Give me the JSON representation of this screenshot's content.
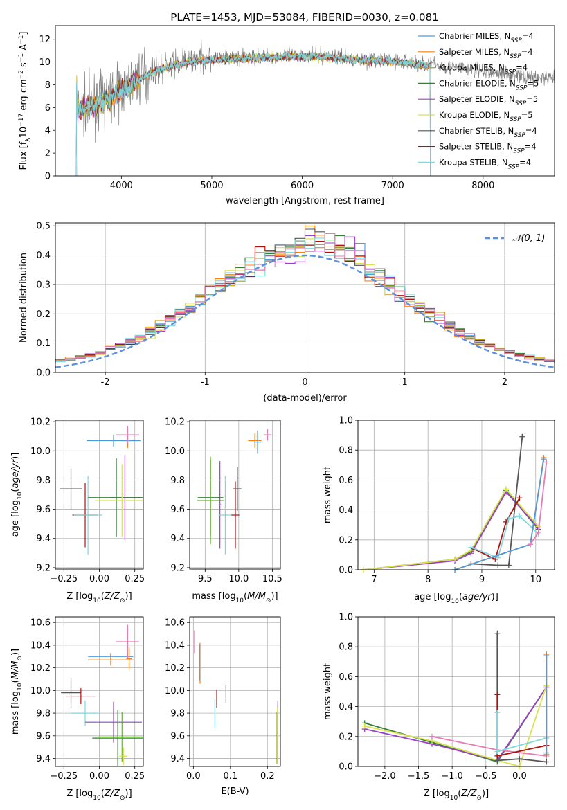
{
  "figure_title": "PLATE=1453, MJD=53084, FIBERID=0030, z=0.081",
  "series_colors": {
    "chabrier_miles": "#4c9be0",
    "salpeter_miles": "#ff7f0e",
    "kroupa_miles": "#c8a000",
    "chabrier_elodie": "#3a7d3a",
    "salpeter_elodie": "#9b40c8",
    "kroupa_elodie": "#d8e24a",
    "chabrier_stelib": "#555555",
    "salpeter_stelib": "#b01010",
    "kroupa_stelib": "#7fd8e0",
    "data": "#808080",
    "pink": "#e87ab8",
    "normal_curve": "#5b8fe0",
    "green": "#66b32e"
  },
  "chart_data": [
    {
      "id": "spectrum",
      "type": "line",
      "xlabel": "wavelength [Angstrom, rest frame]",
      "ylabel": "Flux [f_λ 10^-17 erg cm^-2 s^-1 A^-1]",
      "xlim": [
        3270,
        8790
      ],
      "ylim": [
        0,
        13.2
      ],
      "xticks": [
        4000,
        5000,
        6000,
        7000,
        8000
      ],
      "yticks": [
        0,
        2,
        4,
        6,
        8,
        10,
        12
      ],
      "legend_position": "right",
      "legend": [
        {
          "name": "Chabrier MILES, N",
          "sub": "SSP",
          "suffix": "=4",
          "color_key": "chabrier_miles"
        },
        {
          "name": "Salpeter MILES, N",
          "sub": "SSP",
          "suffix": "=4",
          "color_key": "salpeter_miles"
        },
        {
          "name": "Kroupa MILES, N",
          "sub": "SSP",
          "suffix": "=4",
          "color_key": "kroupa_miles"
        },
        {
          "name": "Chabrier ELODIE, N",
          "sub": "SSP",
          "suffix": "=5",
          "color_key": "chabrier_elodie"
        },
        {
          "name": "Salpeter ELODIE, N",
          "sub": "SSP",
          "suffix": "=5",
          "color_key": "salpeter_elodie"
        },
        {
          "name": "Kroupa ELODIE, N",
          "sub": "SSP",
          "suffix": "=5",
          "color_key": "kroupa_elodie"
        },
        {
          "name": "Chabrier STELIB, N",
          "sub": "SSP",
          "suffix": "=4",
          "color_key": "chabrier_stelib"
        },
        {
          "name": "Salpeter STELIB, N",
          "sub": "SSP",
          "suffix": "=4",
          "color_key": "salpeter_stelib"
        },
        {
          "name": "Kroupa STELIB, N",
          "sub": "SSP",
          "suffix": "=4",
          "color_key": "kroupa_stelib"
        }
      ],
      "continuum_points": [
        [
          3510,
          5.8
        ],
        [
          3700,
          6.3
        ],
        [
          3900,
          7.0
        ],
        [
          4000,
          7.6
        ],
        [
          4200,
          8.6
        ],
        [
          4400,
          9.4
        ],
        [
          4600,
          9.8
        ],
        [
          4800,
          10.2
        ],
        [
          5000,
          10.3
        ],
        [
          5300,
          10.4
        ],
        [
          5600,
          10.5
        ],
        [
          6000,
          10.6
        ],
        [
          6300,
          10.5
        ],
        [
          6600,
          10.3
        ],
        [
          7000,
          10.1
        ],
        [
          7400,
          9.8
        ],
        [
          7800,
          9.4
        ],
        [
          8200,
          9.0
        ],
        [
          8600,
          8.6
        ],
        [
          8790,
          8.4
        ]
      ],
      "model_wavelength_range": [
        3500,
        7420
      ],
      "data_wavelength_range": [
        3500,
        8790
      ]
    },
    {
      "id": "residuals",
      "type": "histogram",
      "xlabel": "(data-model)/error",
      "ylabel": "Normed distribution",
      "xlim": [
        -2.5,
        2.5
      ],
      "ylim": [
        0,
        0.51
      ],
      "xticks": [
        -2,
        -1,
        0,
        1,
        2
      ],
      "yticks": [
        0,
        0.1,
        0.2,
        0.3,
        0.4,
        0.5
      ],
      "legend_position": "top-right",
      "legend": [
        {
          "name": "N(0,1)",
          "color_key": "normal_curve",
          "dashed": true
        }
      ],
      "bin_width": 0.1
    },
    {
      "id": "age_vs_Z",
      "type": "errorbar",
      "xlabel": "Z [log10(Z/Z☉)]",
      "ylabel": "age  [log10(age/yr)]",
      "xlim": [
        -0.31,
        0.31
      ],
      "ylim": [
        9.19,
        10.21
      ],
      "xticks": [
        -0.25,
        0.0,
        0.25
      ],
      "xtick_labels": [
        "−0.25",
        "0.00",
        "0.25"
      ],
      "yticks": [
        9.2,
        9.4,
        9.6,
        9.8,
        10.0,
        10.2
      ],
      "points": [
        {
          "x": -0.2,
          "xerr": 0.08,
          "y": 9.74,
          "yerr": 0.14,
          "color_key": "chabrier_stelib"
        },
        {
          "x": -0.1,
          "xerr": 0.09,
          "y": 9.56,
          "yerr": 0.22,
          "color_key": "salpeter_stelib"
        },
        {
          "x": -0.08,
          "xerr": 0.1,
          "y": 9.56,
          "yerr": 0.27,
          "color_key": "kroupa_stelib"
        },
        {
          "x": 0.18,
          "xerr": 0.11,
          "y": 9.68,
          "yerr": 0.29,
          "color_key": "salpeter_elodie"
        },
        {
          "x": 0.12,
          "xerr": 0.2,
          "y": 9.68,
          "yerr": 0.27,
          "color_key": "chabrier_elodie"
        },
        {
          "x": 0.16,
          "xerr": 0.19,
          "y": 9.66,
          "yerr": 0.25,
          "color_key": "kroupa_elodie"
        },
        {
          "x": 0.2,
          "xerr": 0.04,
          "y": 10.07,
          "yerr": 0.05,
          "color_key": "salpeter_miles"
        },
        {
          "x": 0.1,
          "xerr": 0.19,
          "y": 10.07,
          "yerr": 0.04,
          "color_key": "chabrier_miles"
        },
        {
          "x": 0.2,
          "xerr": 0.08,
          "y": 10.11,
          "yerr": 0.06,
          "color_key": "pink"
        }
      ]
    },
    {
      "id": "age_vs_mass",
      "type": "errorbar",
      "xlabel": "mass [log10(M/M☉)]",
      "ylabel": "",
      "xlim": [
        9.27,
        10.62
      ],
      "ylim": [
        9.19,
        10.21
      ],
      "xticks": [
        9.5,
        10.0,
        10.5
      ],
      "xtick_labels": [
        "9.5",
        "10.0",
        "10.5"
      ],
      "yticks": [
        9.2,
        9.4,
        9.6,
        9.8,
        10.0,
        10.2
      ],
      "points": [
        {
          "x": 9.58,
          "xerr": 0.19,
          "y": 9.68,
          "yerr": 0.26,
          "color_key": "chabrier_elodie"
        },
        {
          "x": 9.58,
          "xerr": 0.2,
          "y": 9.66,
          "yerr": 0.3,
          "color_key": "green"
        },
        {
          "x": 9.72,
          "xerr": 0.02,
          "y": 9.63,
          "yerr": 0.3,
          "color_key": "salpeter_elodie"
        },
        {
          "x": 9.8,
          "xerr": 0.1,
          "y": 9.56,
          "yerr": 0.27,
          "color_key": "kroupa_stelib"
        },
        {
          "x": 9.95,
          "xerr": 0.06,
          "y": 9.56,
          "yerr": 0.23,
          "color_key": "salpeter_stelib"
        },
        {
          "x": 9.98,
          "xerr": 0.06,
          "y": 9.74,
          "yerr": 0.15,
          "color_key": "chabrier_stelib"
        },
        {
          "x": 10.24,
          "xerr": 0.1,
          "y": 10.07,
          "yerr": 0.05,
          "color_key": "salpeter_miles"
        },
        {
          "x": 10.28,
          "xerr": 0.05,
          "y": 10.06,
          "yerr": 0.08,
          "color_key": "chabrier_miles"
        },
        {
          "x": 10.43,
          "xerr": 0.06,
          "y": 10.11,
          "yerr": 0.04,
          "color_key": "pink"
        }
      ]
    },
    {
      "id": "weight_vs_age",
      "type": "line",
      "xlabel": "age  [log10(age/yr)]",
      "ylabel": "mass weight",
      "xlim": [
        6.7,
        10.35
      ],
      "ylim": [
        0,
        1.0
      ],
      "xticks": [
        7,
        8,
        9,
        10
      ],
      "yticks": [
        0,
        0.2,
        0.4,
        0.6,
        0.8,
        1.0
      ],
      "series": [
        {
          "color_key": "chabrier_elodie",
          "x": [
            6.8,
            8.5,
            8.8,
            9.45,
            10.05
          ],
          "y": [
            0.0,
            0.07,
            0.12,
            0.53,
            0.27
          ]
        },
        {
          "color_key": "salpeter_elodie",
          "x": [
            6.8,
            8.5,
            8.8,
            9.45,
            10.05
          ],
          "y": [
            0.0,
            0.06,
            0.11,
            0.52,
            0.28
          ]
        },
        {
          "color_key": "kroupa_elodie",
          "x": [
            6.8,
            8.5,
            8.8,
            9.45,
            10.05
          ],
          "y": [
            0.0,
            0.07,
            0.13,
            0.54,
            0.29
          ]
        },
        {
          "color_key": "chabrier_stelib",
          "x": [
            8.8,
            9.3,
            9.5,
            9.75
          ],
          "y": [
            0.04,
            0.03,
            0.03,
            0.89
          ]
        },
        {
          "color_key": "salpeter_stelib",
          "x": [
            8.85,
            9.25,
            9.45,
            9.7
          ],
          "y": [
            0.14,
            0.07,
            0.32,
            0.48
          ]
        },
        {
          "color_key": "kroupa_stelib",
          "x": [
            8.8,
            9.3,
            9.5,
            9.7,
            10.05
          ],
          "y": [
            0.15,
            0.08,
            0.34,
            0.36,
            0.24
          ]
        },
        {
          "color_key": "salpeter_miles",
          "x": [
            8.5,
            9.9,
            10.15
          ],
          "y": [
            0.0,
            0.17,
            0.75
          ]
        },
        {
          "color_key": "chabrier_miles",
          "x": [
            8.5,
            9.9,
            10.15
          ],
          "y": [
            0.0,
            0.17,
            0.74
          ]
        },
        {
          "color_key": "pink",
          "x": [
            9.9,
            10.05,
            10.2
          ],
          "y": [
            0.17,
            0.25,
            0.72
          ]
        }
      ]
    },
    {
      "id": "mass_vs_Z",
      "type": "errorbar",
      "xlabel": "Z [log10(Z/Z☉)]",
      "ylabel": "mass [log10(M/M☉)]",
      "xlim": [
        -0.31,
        0.31
      ],
      "ylim": [
        9.33,
        10.65
      ],
      "xticks": [
        -0.25,
        0.0,
        0.25
      ],
      "xtick_labels": [
        "−0.25",
        "0.00",
        "0.25"
      ],
      "yticks": [
        9.4,
        9.6,
        9.8,
        10.0,
        10.2,
        10.4,
        10.6
      ],
      "points": [
        {
          "x": -0.2,
          "xerr": 0.07,
          "y": 9.98,
          "yerr": 0.13,
          "color_key": "chabrier_stelib"
        },
        {
          "x": -0.13,
          "xerr": 0.1,
          "y": 9.95,
          "yerr": 0.07,
          "color_key": "salpeter_stelib"
        },
        {
          "x": -0.1,
          "xerr": 0.1,
          "y": 9.8,
          "yerr": 0.11,
          "color_key": "kroupa_stelib"
        },
        {
          "x": 0.1,
          "xerr": 0.2,
          "y": 9.72,
          "yerr": 0.18,
          "color_key": "salpeter_elodie"
        },
        {
          "x": 0.13,
          "xerr": 0.18,
          "y": 9.58,
          "yerr": 0.25,
          "color_key": "chabrier_elodie"
        },
        {
          "x": 0.16,
          "xerr": 0.17,
          "y": 9.59,
          "yerr": 0.22,
          "color_key": "green"
        },
        {
          "x": 0.17,
          "xerr": 0.03,
          "y": 9.42,
          "yerr": 0.08,
          "color_key": "kroupa_elodie"
        },
        {
          "x": 0.08,
          "xerr": 0.16,
          "y": 10.3,
          "yerr": 0.03,
          "color_key": "chabrier_miles"
        },
        {
          "x": 0.08,
          "xerr": 0.16,
          "y": 10.27,
          "yerr": 0.05,
          "color_key": "salpeter_miles"
        },
        {
          "x": 0.2,
          "xerr": 0.08,
          "y": 10.43,
          "yerr": 0.15,
          "color_key": "pink"
        },
        {
          "x": 0.21,
          "xerr": 0.02,
          "y": 10.28,
          "yerr": 0.1,
          "color_key": "salpeter_miles"
        }
      ]
    },
    {
      "id": "mass_vs_ebv",
      "type": "errorbar",
      "xlabel": "E(B-V)",
      "ylabel": "",
      "xlim": [
        -0.01,
        0.235
      ],
      "ylim": [
        9.33,
        10.65
      ],
      "xticks": [
        0.0,
        0.1,
        0.2
      ],
      "xtick_labels": [
        "0.0",
        "0.1",
        "0.2"
      ],
      "yticks": [
        9.4,
        9.6,
        9.8,
        10.0,
        10.2,
        10.4,
        10.6
      ],
      "points": [
        {
          "x": 0.003,
          "xerr": 0.0,
          "y": 10.43,
          "yerr": 0.1,
          "color_key": "pink"
        },
        {
          "x": 0.018,
          "xerr": 0.0,
          "y": 10.24,
          "yerr": 0.18,
          "color_key": "salpeter_miles"
        },
        {
          "x": 0.016,
          "xerr": 0.0,
          "y": 10.25,
          "yerr": 0.16,
          "color_key": "chabrier_miles"
        },
        {
          "x": 0.058,
          "xerr": 0.0,
          "y": 9.8,
          "yerr": 0.13,
          "color_key": "kroupa_stelib"
        },
        {
          "x": 0.063,
          "xerr": 0.0,
          "y": 9.93,
          "yerr": 0.08,
          "color_key": "salpeter_stelib"
        },
        {
          "x": 0.088,
          "xerr": 0.0,
          "y": 9.97,
          "yerr": 0.08,
          "color_key": "chabrier_stelib"
        },
        {
          "x": 0.228,
          "xerr": 0.0,
          "y": 9.72,
          "yerr": 0.19,
          "color_key": "salpeter_elodie"
        },
        {
          "x": 0.226,
          "xerr": 0.0,
          "y": 9.58,
          "yerr": 0.23,
          "color_key": "chabrier_elodie"
        },
        {
          "x": 0.227,
          "xerr": 0.0,
          "y": 9.6,
          "yerr": 0.25,
          "color_key": "kroupa_elodie"
        }
      ]
    },
    {
      "id": "weight_vs_Z",
      "type": "line",
      "xlabel": "Z [log10(Z/Z☉)]",
      "ylabel": "mass weight",
      "xlim": [
        -2.4,
        0.52
      ],
      "ylim": [
        0,
        1.0
      ],
      "xticks": [
        -2.0,
        -1.5,
        -1.0,
        -0.5,
        0.0
      ],
      "xtick_labels": [
        "−2.0",
        "−1.5",
        "−1.0",
        "−0.5",
        "0.0"
      ],
      "yticks": [
        0,
        0.2,
        0.4,
        0.6,
        0.8,
        1.0
      ],
      "series": [
        {
          "color_key": "chabrier_elodie",
          "x": [
            -2.3,
            -1.3,
            -0.33,
            0.4
          ],
          "y": [
            0.29,
            0.16,
            0.03,
            0.53
          ]
        },
        {
          "color_key": "salpeter_elodie",
          "x": [
            -2.3,
            -1.3,
            -0.33,
            0.4
          ],
          "y": [
            0.25,
            0.15,
            0.04,
            0.53
          ]
        },
        {
          "color_key": "kroupa_elodie",
          "x": [
            -2.3,
            -1.3,
            -0.33,
            0.0,
            0.4
          ],
          "y": [
            0.27,
            0.17,
            0.04,
            0.0,
            0.54
          ]
        },
        {
          "color_key": "pink",
          "x": [
            -1.3,
            -0.33,
            0.4
          ],
          "y": [
            0.2,
            0.11,
            0.07
          ]
        },
        {
          "color_key": "chabrier_stelib",
          "x": [
            -0.33,
            -0.33,
            0.0,
            0.4
          ],
          "y": [
            0.89,
            0.04,
            0.05,
            0.03
          ]
        },
        {
          "color_key": "salpeter_stelib",
          "x": [
            -0.33,
            -0.33,
            0.4,
            0.4
          ],
          "y": [
            0.48,
            0.07,
            0.14,
            0.14
          ]
        },
        {
          "color_key": "kroupa_stelib",
          "x": [
            -0.33,
            -0.33,
            0.4
          ],
          "y": [
            0.36,
            0.1,
            0.19
          ]
        },
        {
          "color_key": "salpeter_miles",
          "x": [
            0.4,
            0.4
          ],
          "y": [
            0.08,
            0.75
          ]
        },
        {
          "color_key": "chabrier_miles",
          "x": [
            0.4,
            0.4
          ],
          "y": [
            0.09,
            0.74
          ]
        }
      ]
    }
  ]
}
